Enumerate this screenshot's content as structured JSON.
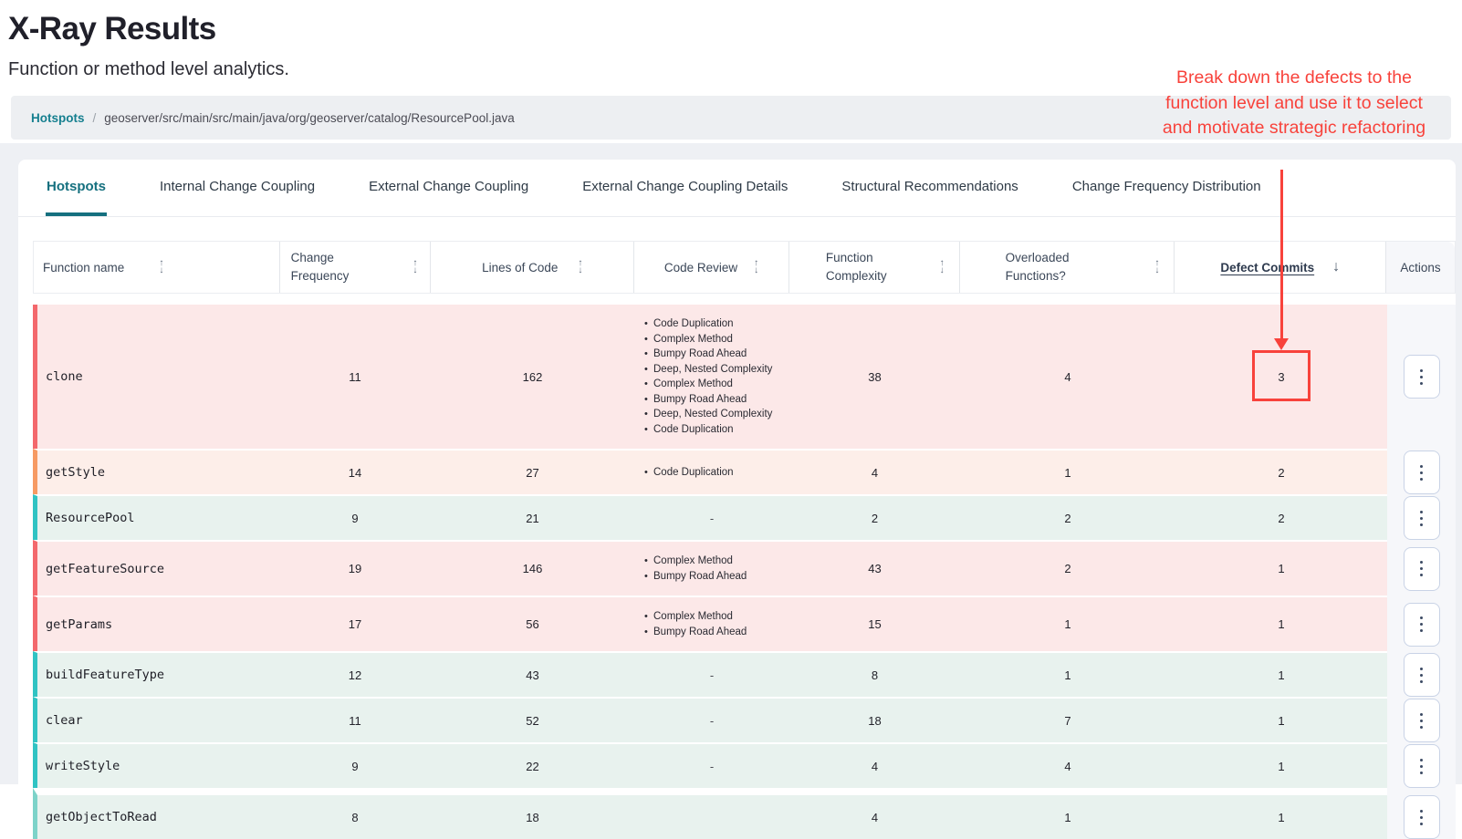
{
  "page": {
    "title": "X-Ray Results",
    "subtitle": "Function or method level analytics."
  },
  "breadcrumb": {
    "root": "Hotspots",
    "separator": "/",
    "path": "geoserver/src/main/src/main/java/org/geoserver/catalog/ResourcePool.java"
  },
  "annotation": {
    "text": "Break down the defects to the function level and use it to select and motivate strategic refactoring",
    "color": "#f8423b",
    "points_to": "defect-commits value of row clone"
  },
  "tabs": [
    {
      "label": "Hotspots",
      "active": true
    },
    {
      "label": "Internal Change Coupling",
      "active": false
    },
    {
      "label": "External Change Coupling",
      "active": false
    },
    {
      "label": "External Change Coupling Details",
      "active": false
    },
    {
      "label": "Structural Recommendations",
      "active": false
    },
    {
      "label": "Change Frequency Distribution",
      "active": false
    }
  ],
  "icons": {
    "sortable": "sort-arrows-icon",
    "sorted_desc": "arrow-down-icon",
    "row_menu": "kebab-menu-icon"
  },
  "colors": {
    "accent_teal": "#15707f",
    "annotation_red": "#f8423b",
    "row_pink": "#fce8e8",
    "row_peach": "#fdeee9",
    "row_green": "#e8f2ee",
    "strip_red": "#f3686c",
    "strip_orange": "#f69a63",
    "strip_teal": "#30c3c3",
    "actions_bg": "#f6f7fa"
  },
  "table": {
    "columns": [
      {
        "key": "function_name",
        "label": "Function name",
        "two_line": false,
        "sort": "both"
      },
      {
        "key": "change_frequency",
        "label": "Change Frequency",
        "two_line": true,
        "sort": "both"
      },
      {
        "key": "lines_of_code",
        "label": "Lines of Code",
        "two_line": false,
        "sort": "both"
      },
      {
        "key": "code_review",
        "label": "Code Review",
        "two_line": false,
        "sort": "both"
      },
      {
        "key": "function_complexity",
        "label": "Function Complexity",
        "two_line": true,
        "sort": "both"
      },
      {
        "key": "overloaded_functions",
        "label": "Overloaded Functions?",
        "two_line": true,
        "sort": "both"
      },
      {
        "key": "defect_commits",
        "label": "Defect Commits",
        "two_line": false,
        "sort": "desc",
        "sorted": true
      },
      {
        "key": "actions",
        "label": "Actions",
        "two_line": false,
        "sort": "none"
      }
    ],
    "sort_glyphs": {
      "up": "↑",
      "down": "↓"
    },
    "empty_value": "-",
    "rows": [
      {
        "name": "clone",
        "change_frequency": 11,
        "lines_of_code": 162,
        "code_review": [
          "Code Duplication",
          "Complex Method",
          "Bumpy Road Ahead",
          "Deep, Nested Complexity",
          "Complex Method",
          "Bumpy Road Ahead",
          "Deep, Nested Complexity",
          "Code Duplication"
        ],
        "function_complexity": 38,
        "overloaded_functions": 4,
        "defect_commits": 3,
        "strip": "red",
        "tint": "pink",
        "highlighted": true
      },
      {
        "name": "getStyle",
        "change_frequency": 14,
        "lines_of_code": 27,
        "code_review": [
          "Code Duplication"
        ],
        "function_complexity": 4,
        "overloaded_functions": 1,
        "defect_commits": 2,
        "strip": "orange",
        "tint": "peach",
        "highlighted": false
      },
      {
        "name": "ResourcePool",
        "change_frequency": 9,
        "lines_of_code": 21,
        "code_review": "-",
        "function_complexity": 2,
        "overloaded_functions": 2,
        "defect_commits": 2,
        "strip": "teal",
        "tint": "green",
        "highlighted": false
      },
      {
        "name": "getFeatureSource",
        "change_frequency": 19,
        "lines_of_code": 146,
        "code_review": [
          "Complex Method",
          "Bumpy Road Ahead"
        ],
        "function_complexity": 43,
        "overloaded_functions": 2,
        "defect_commits": 1,
        "strip": "red",
        "tint": "pink",
        "highlighted": false
      },
      {
        "name": "getParams",
        "change_frequency": 17,
        "lines_of_code": 56,
        "code_review": [
          "Complex Method",
          "Bumpy Road Ahead"
        ],
        "function_complexity": 15,
        "overloaded_functions": 1,
        "defect_commits": 1,
        "strip": "red",
        "tint": "pink",
        "highlighted": false
      },
      {
        "name": "buildFeatureType",
        "change_frequency": 12,
        "lines_of_code": 43,
        "code_review": "-",
        "function_complexity": 8,
        "overloaded_functions": 1,
        "defect_commits": 1,
        "strip": "teal",
        "tint": "green",
        "highlighted": false
      },
      {
        "name": "clear",
        "change_frequency": 11,
        "lines_of_code": 52,
        "code_review": "-",
        "function_complexity": 18,
        "overloaded_functions": 7,
        "defect_commits": 1,
        "strip": "teal",
        "tint": "green",
        "highlighted": false
      },
      {
        "name": "writeStyle",
        "change_frequency": 9,
        "lines_of_code": 22,
        "code_review": "-",
        "function_complexity": 4,
        "overloaded_functions": 4,
        "defect_commits": 1,
        "strip": "teal",
        "tint": "green",
        "highlighted": false
      },
      {
        "name": "getObjectToRead",
        "change_frequency": 8,
        "lines_of_code": 18,
        "code_review": "",
        "function_complexity": 4,
        "overloaded_functions": 1,
        "defect_commits": 1,
        "strip": "teal-light",
        "tint": "green",
        "highlighted": false,
        "gap_before": true
      }
    ]
  }
}
